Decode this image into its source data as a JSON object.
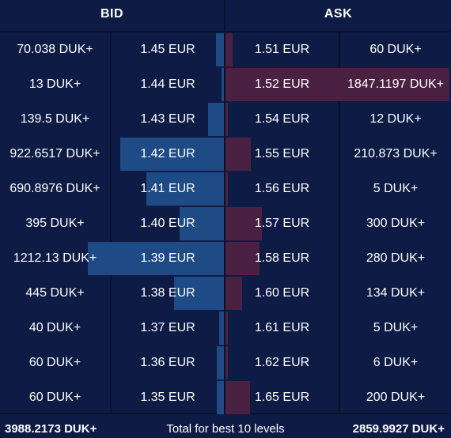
{
  "header": {
    "bid_label": "BID",
    "ask_label": "ASK"
  },
  "colors": {
    "background": "#0d1b45",
    "bid_bar": "#1e4a85",
    "ask_bar": "#4a2143",
    "separator": "#08122f"
  },
  "rows": [
    {
      "bid_qty": "70.038 DUK+",
      "bid_price": "1.45 EUR",
      "ask_price": "1.51 EUR",
      "ask_qty": "60 DUK+",
      "bid_depth": 0.058,
      "ask_depth": 0.032
    },
    {
      "bid_qty": "13 DUK+",
      "bid_price": "1.44 EUR",
      "ask_price": "1.52 EUR",
      "ask_qty": "1847.1197 DUK+",
      "bid_depth": 0.011,
      "ask_depth": 1.0
    },
    {
      "bid_qty": "139.5 DUK+",
      "bid_price": "1.43 EUR",
      "ask_price": "1.54 EUR",
      "ask_qty": "12 DUK+",
      "bid_depth": 0.115,
      "ask_depth": 0.0065
    },
    {
      "bid_qty": "922.6517 DUK+",
      "bid_price": "1.42 EUR",
      "ask_price": "1.55 EUR",
      "ask_qty": "210.873 DUK+",
      "bid_depth": 0.761,
      "ask_depth": 0.114
    },
    {
      "bid_qty": "690.8976 DUK+",
      "bid_price": "1.41 EUR",
      "ask_price": "1.56 EUR",
      "ask_qty": "5 DUK+",
      "bid_depth": 0.57,
      "ask_depth": 0.0027
    },
    {
      "bid_qty": "395 DUK+",
      "bid_price": "1.40 EUR",
      "ask_price": "1.57 EUR",
      "ask_qty": "300 DUK+",
      "bid_depth": 0.326,
      "ask_depth": 0.162
    },
    {
      "bid_qty": "1212.13 DUK+",
      "bid_price": "1.39 EUR",
      "ask_price": "1.58 EUR",
      "ask_qty": "280 DUK+",
      "bid_depth": 1.0,
      "ask_depth": 0.152
    },
    {
      "bid_qty": "445 DUK+",
      "bid_price": "1.38 EUR",
      "ask_price": "1.60 EUR",
      "ask_qty": "134 DUK+",
      "bid_depth": 0.367,
      "ask_depth": 0.073
    },
    {
      "bid_qty": "40 DUK+",
      "bid_price": "1.37 EUR",
      "ask_price": "1.61 EUR",
      "ask_qty": "5 DUK+",
      "bid_depth": 0.033,
      "ask_depth": 0.0027
    },
    {
      "bid_qty": "60 DUK+",
      "bid_price": "1.36 EUR",
      "ask_price": "1.62 EUR",
      "ask_qty": "6 DUK+",
      "bid_depth": 0.05,
      "ask_depth": 0.0032
    },
    {
      "bid_qty": "60 DUK+",
      "bid_price": "1.35 EUR",
      "ask_price": "1.65 EUR",
      "ask_qty": "200 DUK+",
      "bid_depth": 0.05,
      "ask_depth": 0.108
    }
  ],
  "footer": {
    "bid_total": "3988.2173 DUK+",
    "label": "Total for best 10 levels",
    "ask_total": "2859.9927 DUK+"
  }
}
